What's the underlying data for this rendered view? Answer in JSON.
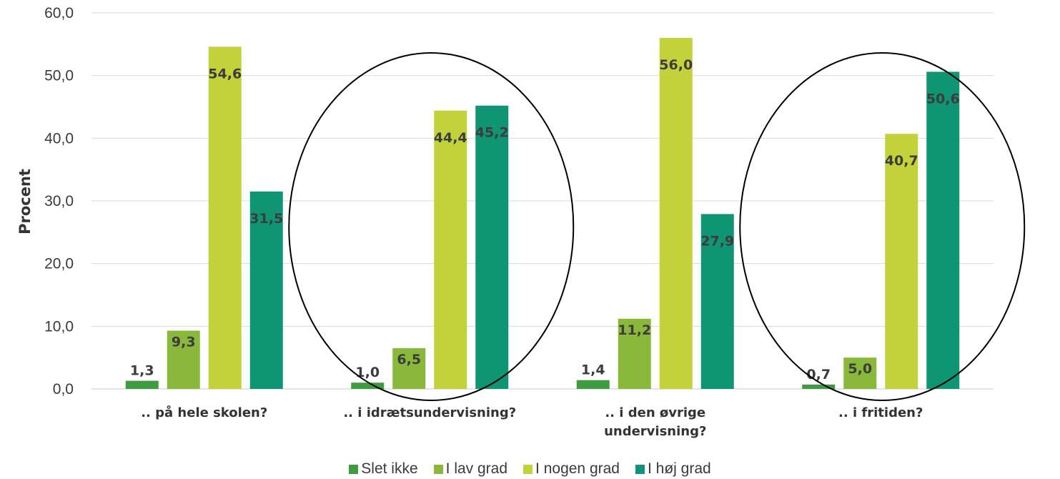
{
  "chart_data": {
    "type": "bar",
    "ylabel": "Procent",
    "ylim": [
      0,
      60
    ],
    "yticks": [
      "0,0",
      "10,0",
      "20,0",
      "30,0",
      "40,0",
      "50,0",
      "60,0"
    ],
    "grid": true,
    "legend_position": "bottom",
    "categories": [
      [
        ".. på hele skolen?"
      ],
      [
        ".. i idrætsundervisning?"
      ],
      [
        ".. i den øvrige",
        "undervisning?"
      ],
      [
        ".. i fritiden?"
      ]
    ],
    "series": [
      {
        "name": "Slet ikke",
        "color": "#3f9b3f",
        "values": [
          1.3,
          1.0,
          1.4,
          0.7
        ],
        "labels": [
          "1,3",
          "1,0",
          "1,4",
          "0,7"
        ]
      },
      {
        "name": "I lav grad",
        "color": "#8ab83a",
        "values": [
          9.3,
          6.5,
          11.2,
          5.0
        ],
        "labels": [
          "9,3",
          "6,5",
          "11,2",
          "5,0"
        ]
      },
      {
        "name": "I nogen grad",
        "color": "#c3d23a",
        "values": [
          54.6,
          44.4,
          56.0,
          40.7
        ],
        "labels": [
          "54,6",
          "44,4",
          "56,0",
          "40,7"
        ]
      },
      {
        "name": "I høj grad",
        "color": "#0f9474",
        "values": [
          31.5,
          45.2,
          27.9,
          50.6
        ],
        "labels": [
          "31,5",
          "45,2",
          "27,9",
          "50,6"
        ]
      }
    ],
    "annotations": [
      {
        "type": "ellipse",
        "around_category": 1
      },
      {
        "type": "ellipse",
        "around_category": 3
      }
    ]
  }
}
